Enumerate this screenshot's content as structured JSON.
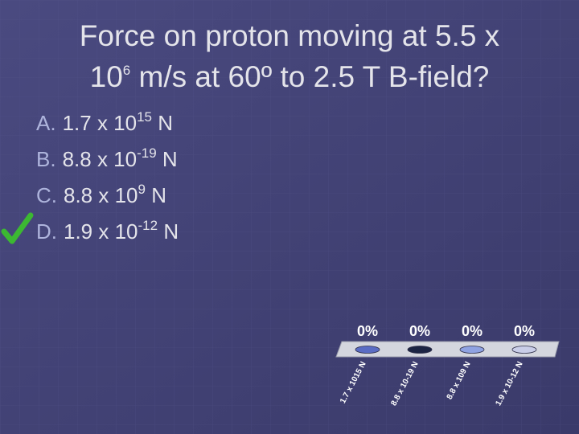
{
  "title": {
    "line1": "Force on proton moving at 5.5 x",
    "base": "10",
    "exponent": "6",
    "rest": " m/s at 60º to 2.5 T B-field?"
  },
  "options": [
    {
      "letter": "A.",
      "mantissa": "1.7 x 10",
      "exponent": "15",
      "unit": " N"
    },
    {
      "letter": "B.",
      "mantissa": "8.8 x 10",
      "exponent": "-19",
      "unit": " N"
    },
    {
      "letter": "C.",
      "mantissa": "8.8 x 10",
      "exponent": "9",
      "unit": " N"
    },
    {
      "letter": "D.",
      "mantissa": "1.9 x 10",
      "exponent": "-12",
      "unit": " N"
    }
  ],
  "chart_data": {
    "type": "bar",
    "categories": [
      "1.7 x 1015 N",
      "8.8 x 10-19 N",
      "8.8 x 109 N",
      "1.9 x 10-12 N"
    ],
    "values": [
      0,
      0,
      0,
      0
    ],
    "value_labels": [
      "0%",
      "0%",
      "0%",
      "0%"
    ],
    "colors": [
      "#5a6cc4",
      "#1c2444",
      "#8fa2e2",
      "#c9cde8"
    ],
    "ylim": [
      0,
      100
    ]
  }
}
